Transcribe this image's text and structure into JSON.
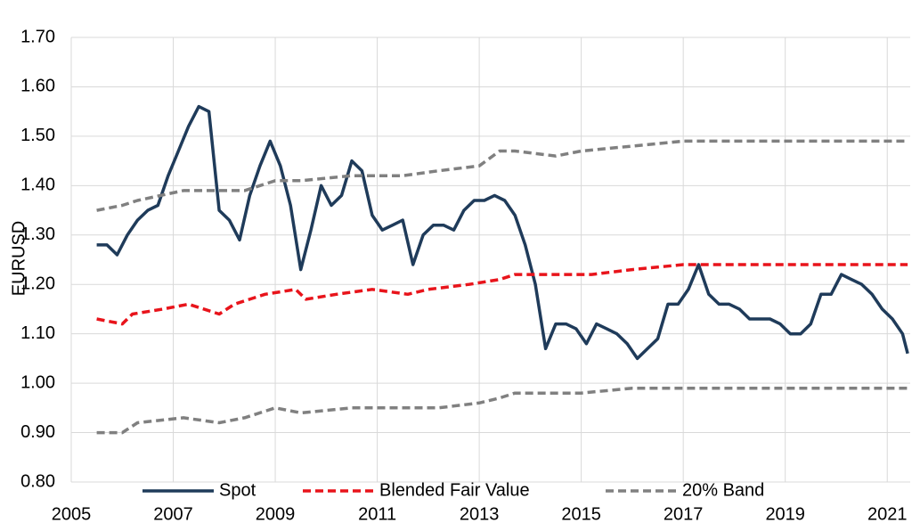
{
  "chart_data": {
    "type": "line",
    "y_label": "EURUSD",
    "xlim": [
      2005,
      2021.45
    ],
    "xticks": [
      2005,
      2007,
      2009,
      2011,
      2013,
      2015,
      2017,
      2019,
      2021
    ],
    "ylim": [
      0.8,
      1.7
    ],
    "yticks": [
      {
        "value": 0.8,
        "label": "0.80"
      },
      {
        "value": 0.9,
        "label": "0.90"
      },
      {
        "value": 1.0,
        "label": "1.00"
      },
      {
        "value": 1.1,
        "label": "1.10"
      },
      {
        "value": 1.2,
        "label": "1.20"
      },
      {
        "value": 1.3,
        "label": "1.30"
      },
      {
        "value": 1.4,
        "label": "1.40"
      },
      {
        "value": 1.5,
        "label": "1.50"
      },
      {
        "value": 1.6,
        "label": "1.60"
      },
      {
        "value": 1.7,
        "label": "1.70"
      }
    ],
    "grid": true,
    "legend": "bottom",
    "series": [
      {
        "name": "Spot",
        "color": "#1f3b5a",
        "dashed": false,
        "x": [
          2005.5,
          2005.7,
          2005.9,
          2006.1,
          2006.3,
          2006.5,
          2006.7,
          2006.9,
          2007.1,
          2007.3,
          2007.5,
          2007.7,
          2007.9,
          2008.1,
          2008.3,
          2008.5,
          2008.7,
          2008.9,
          2009.1,
          2009.3,
          2009.5,
          2009.7,
          2009.9,
          2010.1,
          2010.3,
          2010.5,
          2010.7,
          2010.9,
          2011.1,
          2011.3,
          2011.5,
          2011.7,
          2011.9,
          2012.1,
          2012.3,
          2012.5,
          2012.7,
          2012.9,
          2013.1,
          2013.3,
          2013.5,
          2013.7,
          2013.9,
          2014.1,
          2014.3,
          2014.5,
          2014.7,
          2014.9,
          2015.1,
          2015.3,
          2015.5,
          2015.7,
          2015.9,
          2016.1,
          2016.3,
          2016.5,
          2016.7,
          2016.9,
          2017.1,
          2017.3,
          2017.5,
          2017.7,
          2017.9,
          2018.1,
          2018.3,
          2018.5,
          2018.7,
          2018.9,
          2019.1,
          2019.3,
          2019.5,
          2019.7,
          2019.9,
          2020.1,
          2020.3,
          2020.5,
          2020.7,
          2020.9,
          2021.1,
          2021.3,
          2021.4
        ],
        "values": [
          1.28,
          1.28,
          1.26,
          1.3,
          1.33,
          1.35,
          1.36,
          1.42,
          1.47,
          1.52,
          1.56,
          1.55,
          1.35,
          1.33,
          1.29,
          1.38,
          1.44,
          1.49,
          1.44,
          1.36,
          1.23,
          1.31,
          1.4,
          1.36,
          1.38,
          1.45,
          1.43,
          1.34,
          1.31,
          1.32,
          1.33,
          1.24,
          1.3,
          1.32,
          1.32,
          1.31,
          1.35,
          1.37,
          1.37,
          1.38,
          1.37,
          1.34,
          1.28,
          1.2,
          1.07,
          1.12,
          1.12,
          1.11,
          1.08,
          1.12,
          1.11,
          1.1,
          1.08,
          1.05,
          1.07,
          1.09,
          1.16,
          1.16,
          1.19,
          1.24,
          1.18,
          1.16,
          1.16,
          1.15,
          1.13,
          1.13,
          1.13,
          1.12,
          1.1,
          1.1,
          1.12,
          1.18,
          1.18,
          1.22,
          1.21,
          1.2,
          1.18,
          1.15,
          1.13,
          1.1,
          1.06
        ]
      },
      {
        "name": "Blended Fair Value",
        "color": "#e8141b",
        "dashed": true,
        "x": [
          2005.5,
          2006.0,
          2006.2,
          2006.8,
          2007.3,
          2007.9,
          2008.2,
          2008.8,
          2009.4,
          2009.6,
          2010.2,
          2010.9,
          2011.6,
          2012.0,
          2012.8,
          2013.4,
          2013.7,
          2014.6,
          2015.2,
          2016.0,
          2017.0,
          2021.4
        ],
        "values": [
          1.13,
          1.12,
          1.14,
          1.15,
          1.16,
          1.14,
          1.16,
          1.18,
          1.19,
          1.17,
          1.18,
          1.19,
          1.18,
          1.19,
          1.2,
          1.21,
          1.22,
          1.22,
          1.22,
          1.23,
          1.24,
          1.24
        ]
      },
      {
        "name": "20% Band",
        "color": "#808080",
        "dashed": true,
        "x": [
          2005.5,
          2006.0,
          2006.3,
          2007.2,
          2007.9,
          2008.4,
          2009.0,
          2009.5,
          2010.5,
          2011.5,
          2012.2,
          2013.0,
          2013.4,
          2013.7,
          2014.5,
          2015.0,
          2016.0,
          2017.0,
          2021.4
        ],
        "upper": [
          1.35,
          1.36,
          1.37,
          1.39,
          1.39,
          1.39,
          1.41,
          1.41,
          1.42,
          1.42,
          1.43,
          1.44,
          1.47,
          1.47,
          1.46,
          1.47,
          1.48,
          1.49,
          1.49
        ],
        "lower": [
          0.9,
          0.9,
          0.92,
          0.93,
          0.92,
          0.93,
          0.95,
          0.94,
          0.95,
          0.95,
          0.95,
          0.96,
          0.97,
          0.98,
          0.98,
          0.98,
          0.99,
          0.99,
          0.99
        ]
      }
    ]
  }
}
